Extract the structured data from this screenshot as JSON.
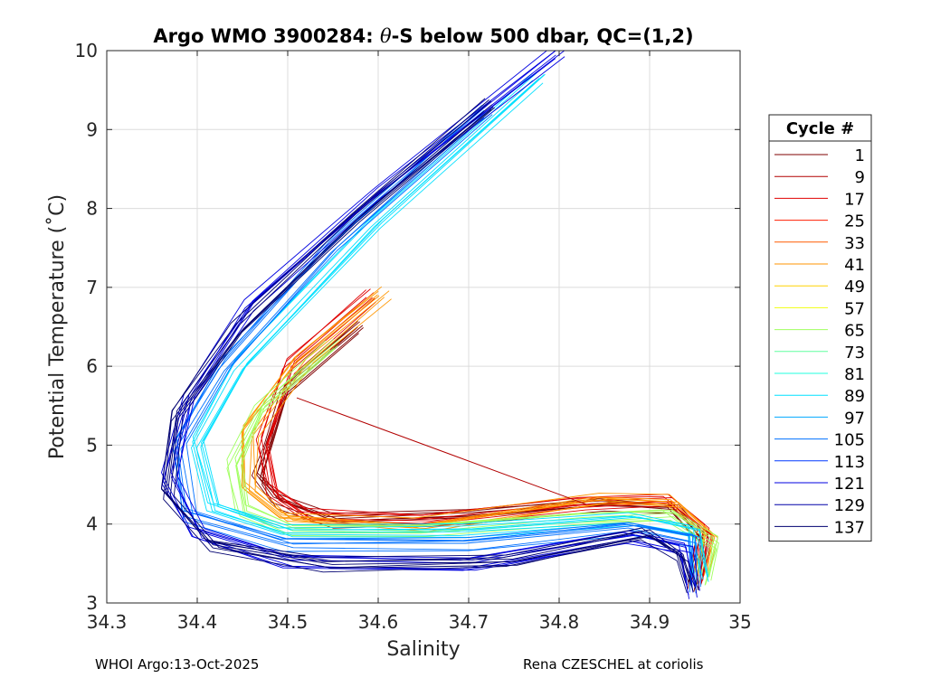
{
  "chart_data": {
    "type": "line",
    "title_parts": [
      "Argo WMO 3900284: ",
      "θ",
      "-S below 500 dbar,  QC=(1,2)"
    ],
    "xlabel": "Salinity",
    "ylabel": "Potential Temperature (˚C)",
    "xlim": [
      34.3,
      35
    ],
    "ylim": [
      3,
      10
    ],
    "xticks": [
      "34.3",
      "34.4",
      "34.5",
      "34.6",
      "34.7",
      "34.8",
      "34.9",
      "35"
    ],
    "yticks": [
      "3",
      "4",
      "5",
      "6",
      "7",
      "8",
      "9",
      "10"
    ],
    "grid": true,
    "legend": {
      "title": "Cycle #",
      "position": "right",
      "entries": [
        "1",
        "9",
        "17",
        "25",
        "33",
        "41",
        "49",
        "57",
        "65",
        "73",
        "81",
        "89",
        "97",
        "105",
        "113",
        "121",
        "129",
        "137"
      ],
      "colors": [
        "#7f0000",
        "#b20000",
        "#e00000",
        "#ff1e00",
        "#ff5a00",
        "#ff9600",
        "#ffd200",
        "#f0ff0f",
        "#a0ff5f",
        "#60ff9f",
        "#20ffdf",
        "#00e0ff",
        "#00a8ff",
        "#0070ff",
        "#0038ff",
        "#0000e0",
        "#0000a8",
        "#000070"
      ]
    },
    "series": [
      {
        "name": "1",
        "x": [
          34.58,
          34.5,
          34.48,
          34.47,
          34.49,
          34.55,
          34.7,
          34.85,
          34.93,
          34.96,
          34.95
        ],
        "y": [
          6.5,
          5.7,
          5.0,
          4.6,
          4.3,
          4.05,
          4.1,
          4.25,
          4.2,
          3.8,
          3.2
        ]
      },
      {
        "name": "17",
        "x": [
          34.59,
          34.5,
          34.47,
          34.48,
          34.52,
          34.65,
          34.82,
          34.92,
          34.96,
          34.95
        ],
        "y": [
          6.9,
          6.0,
          5.0,
          4.4,
          4.1,
          4.05,
          4.25,
          4.3,
          3.9,
          3.3
        ]
      },
      {
        "name": "41",
        "x": [
          34.61,
          34.52,
          34.46,
          34.46,
          34.5,
          34.65,
          34.85,
          34.93,
          34.97,
          34.96
        ],
        "y": [
          6.95,
          6.1,
          5.2,
          4.5,
          4.1,
          4.0,
          4.35,
          4.3,
          3.9,
          3.4
        ]
      },
      {
        "name": "65",
        "x": [
          34.55,
          34.47,
          34.44,
          34.45,
          34.5,
          34.65,
          34.82,
          34.92,
          34.97,
          34.96
        ],
        "y": [
          6.3,
          5.5,
          4.8,
          4.2,
          3.95,
          3.95,
          4.1,
          4.15,
          3.8,
          3.3
        ]
      },
      {
        "name": "89",
        "x": [
          34.78,
          34.6,
          34.45,
          34.4,
          34.42,
          34.5,
          34.7,
          34.88,
          34.95,
          34.96
        ],
        "y": [
          9.65,
          7.8,
          6.0,
          5.0,
          4.2,
          3.9,
          3.9,
          4.05,
          3.9,
          3.3
        ]
      },
      {
        "name": "105",
        "x": [
          34.72,
          34.55,
          34.43,
          34.38,
          34.39,
          34.5,
          34.7,
          34.88,
          34.95,
          34.95
        ],
        "y": [
          9.25,
          7.5,
          6.0,
          5.0,
          4.1,
          3.75,
          3.75,
          3.95,
          3.8,
          3.2
        ]
      },
      {
        "name": "121",
        "x": [
          34.8,
          34.6,
          34.46,
          34.39,
          34.37,
          34.4,
          34.5,
          34.7,
          34.88,
          34.94,
          34.95
        ],
        "y": [
          10.0,
          8.2,
          6.8,
          5.6,
          4.6,
          3.9,
          3.55,
          3.5,
          3.85,
          3.7,
          3.15
        ]
      },
      {
        "name": "137",
        "x": [
          34.73,
          34.58,
          34.45,
          34.38,
          34.37,
          34.42,
          34.55,
          34.75,
          34.9,
          34.94,
          34.95
        ],
        "y": [
          9.35,
          7.9,
          6.5,
          5.4,
          4.4,
          3.75,
          3.5,
          3.55,
          3.9,
          3.6,
          3.2
        ]
      }
    ],
    "stray_segment": {
      "x": [
        34.51,
        34.83
      ],
      "y": [
        5.6,
        4.25
      ]
    }
  },
  "footer": {
    "left": "WHOI Argo:13-Oct-2025",
    "right": "Rena CZESCHEL at coriolis"
  }
}
